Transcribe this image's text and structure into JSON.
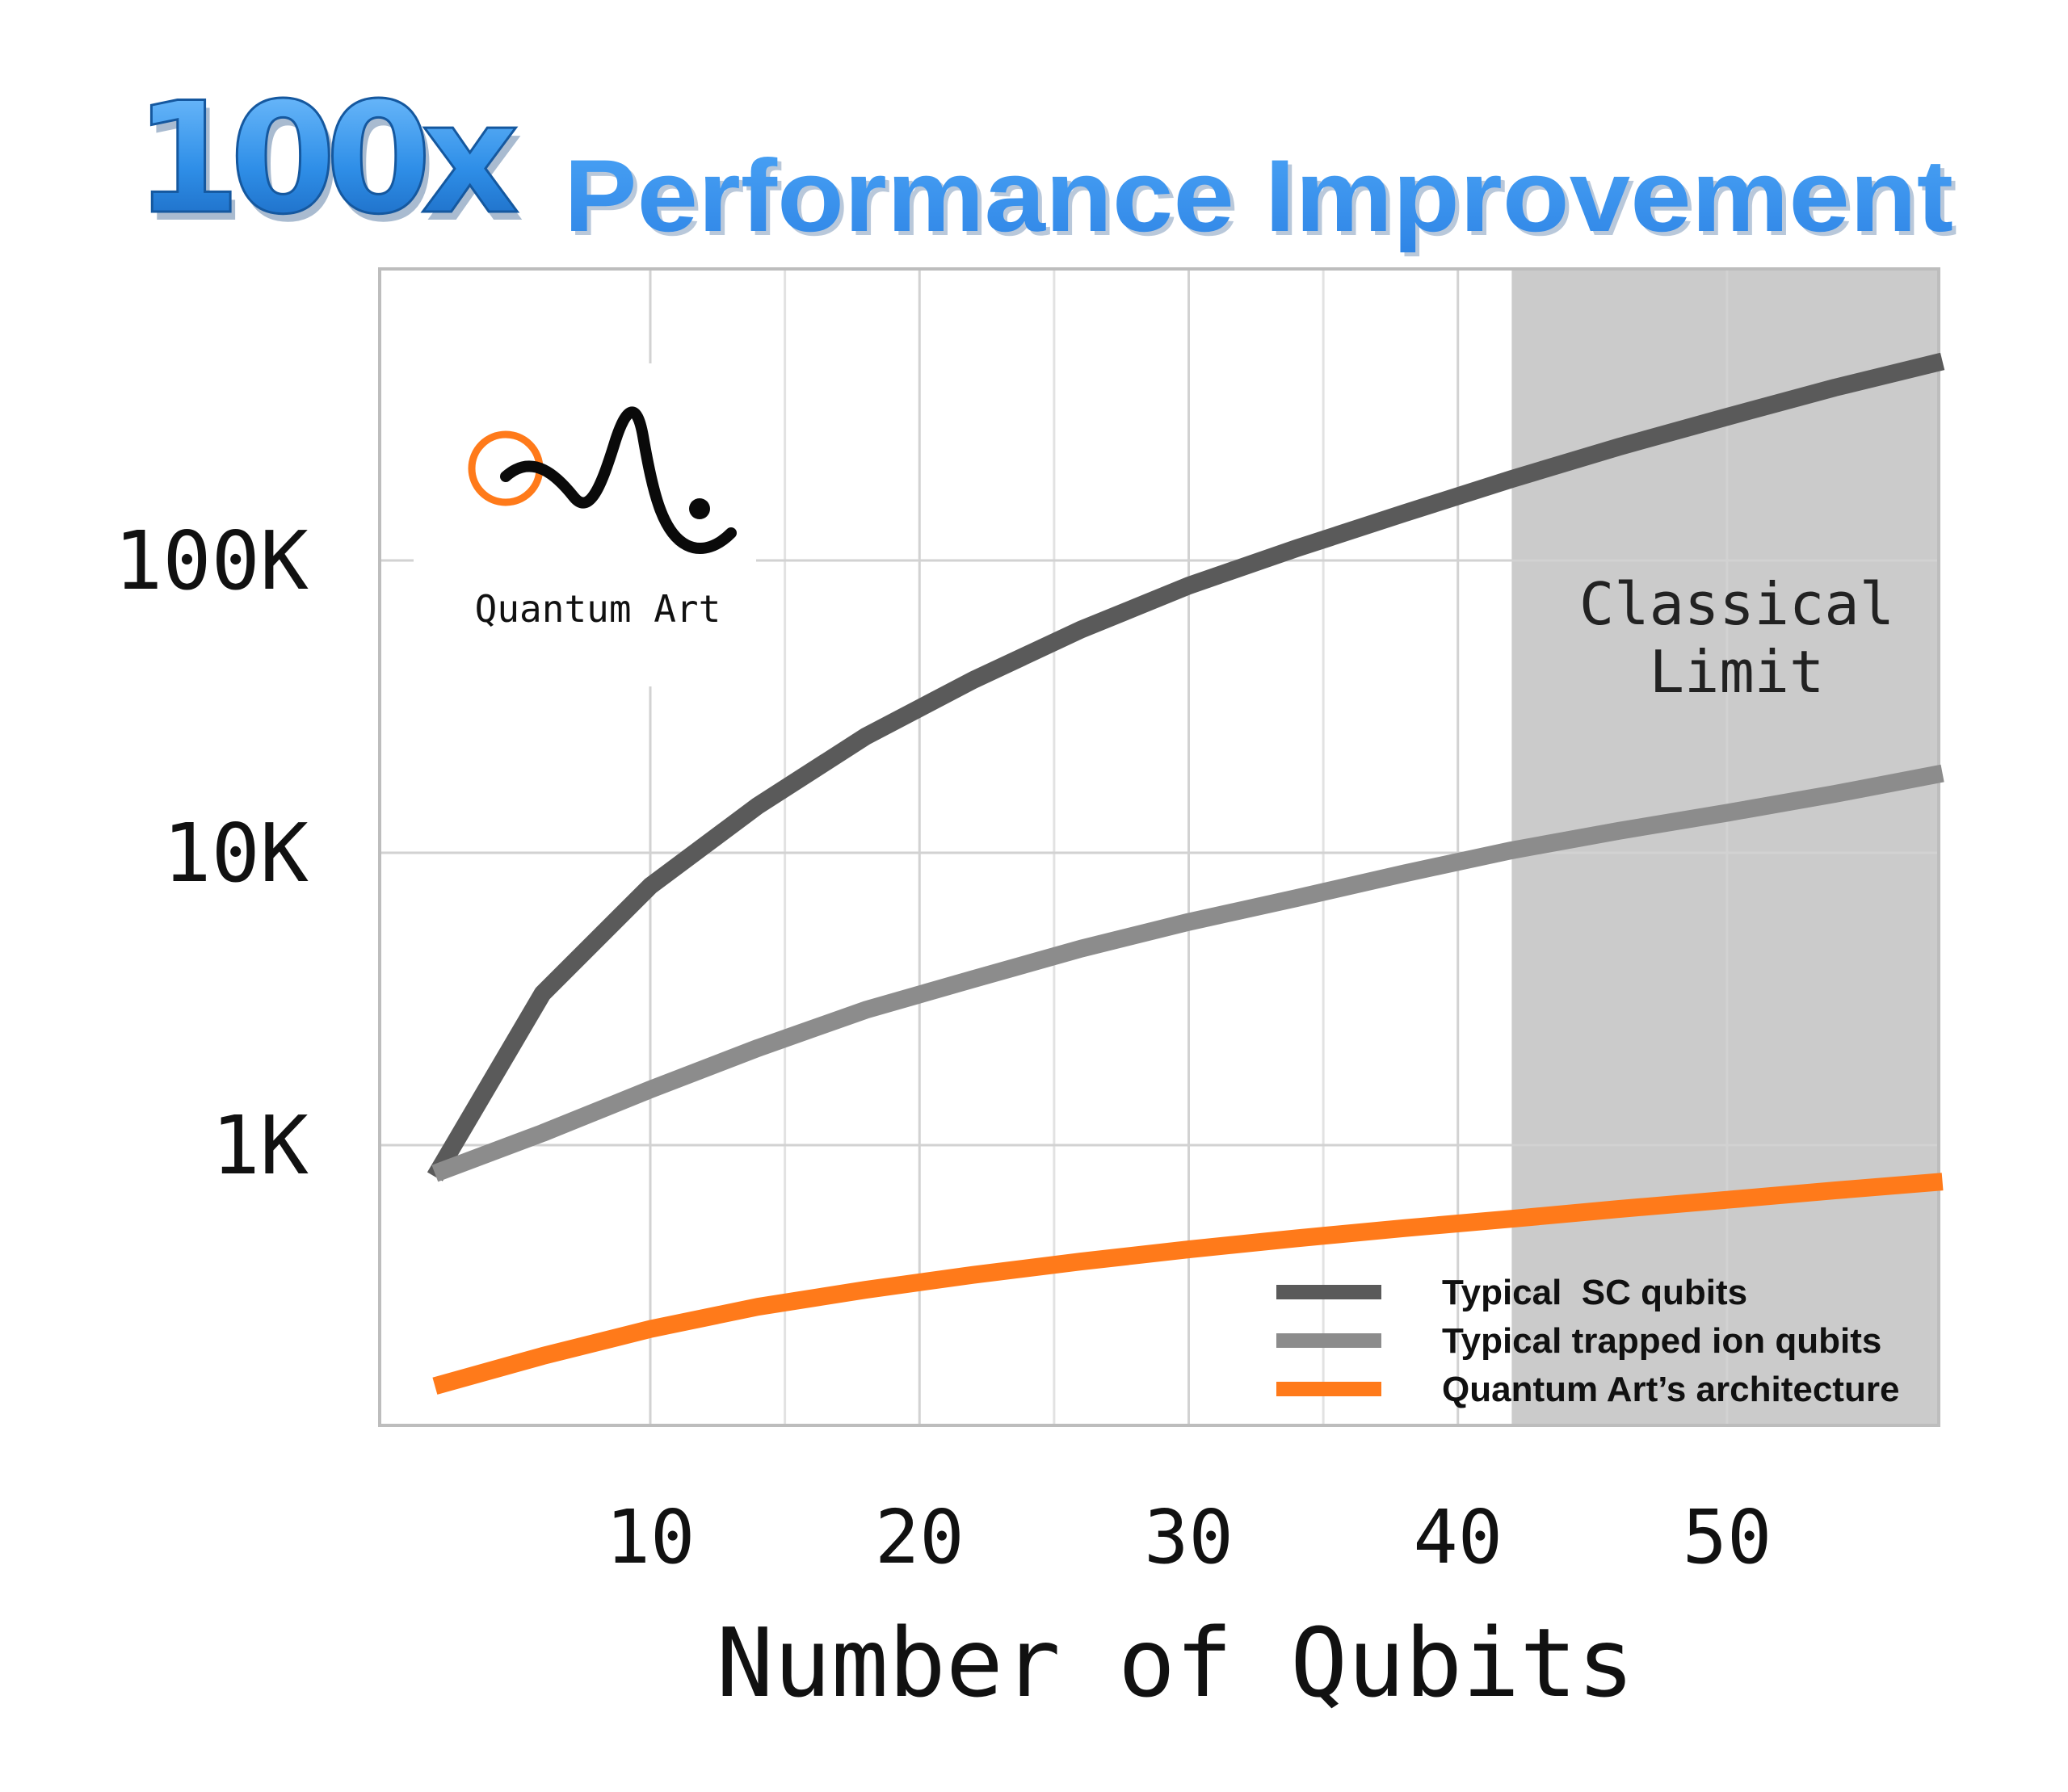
{
  "header": {
    "badge": "100x",
    "title": "Performance Improvement"
  },
  "logo": {
    "text": "Quantum Art"
  },
  "chart_data": {
    "type": "line",
    "title": "100x Performance Improvement",
    "xlabel": "Number of Qubits",
    "ylabel": "",
    "x_ticks": [
      10,
      20,
      30,
      40,
      50
    ],
    "x_tick_labels": [
      "10",
      "20",
      "30",
      "40",
      "50"
    ],
    "y_ticks": [
      1000,
      10000,
      100000
    ],
    "y_tick_labels": [
      "1K",
      "10K",
      "100K"
    ],
    "y_scale": "log",
    "xlim": [
      0,
      58
    ],
    "ylim": [
      100,
      1000000
    ],
    "grid": true,
    "legend_position": "bottom-right",
    "shaded_region": {
      "x_from": 42,
      "x_to": 58,
      "label_lines": [
        "Classical",
        "Limit"
      ]
    },
    "series": [
      {
        "name": "Typical  SC qubits",
        "color": "#5a5a5a",
        "x": [
          2,
          6,
          10,
          14,
          18,
          22,
          26,
          30,
          34,
          38,
          42,
          46,
          50,
          54,
          58
        ],
        "y": [
          780,
          3300,
          7700,
          14500,
          25000,
          39000,
          58000,
          82000,
          110000,
          145000,
          190000,
          245000,
          310000,
          390000,
          480000
        ]
      },
      {
        "name": "Typical trapped ion qubits",
        "color": "#8c8c8c",
        "x": [
          2,
          6,
          10,
          14,
          18,
          22,
          26,
          30,
          34,
          38,
          42,
          46,
          50,
          54,
          58
        ],
        "y": [
          800,
          1100,
          1550,
          2150,
          2900,
          3700,
          4700,
          5800,
          7000,
          8500,
          10200,
          11900,
          13700,
          15900,
          18700
        ]
      },
      {
        "name": "Quantum Art’s architecture",
        "color": "#ff7a1a",
        "x": [
          2,
          6,
          10,
          14,
          18,
          22,
          26,
          30,
          34,
          38,
          42,
          46,
          50,
          54,
          58
        ],
        "y": [
          150,
          190,
          235,
          280,
          320,
          360,
          400,
          440,
          480,
          520,
          560,
          605,
          650,
          700,
          750
        ]
      }
    ]
  }
}
